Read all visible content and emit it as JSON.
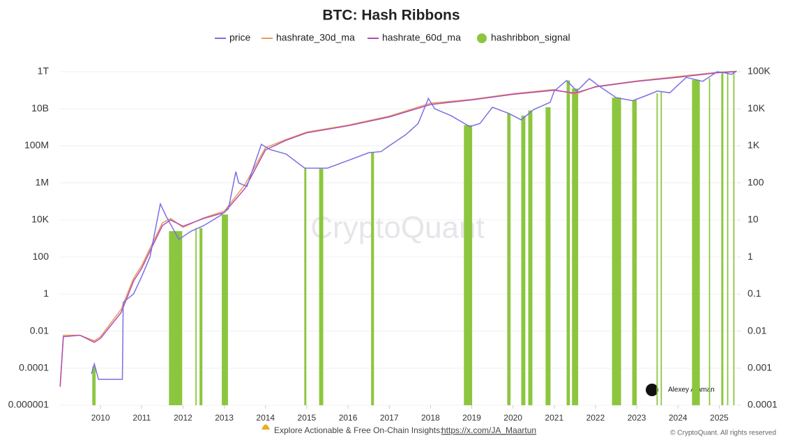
{
  "chart_data": {
    "type": "line",
    "title": "BTC: Hash Ribbons",
    "watermark": "CryptoQuant",
    "annotations": [
      "Alexey Ataman",
      "Explore Actionable & Free On-Chain Insights: ",
      "https://x.com/JA_Maartun",
      "© CryptoQuant. All rights reserved"
    ],
    "log_scale": true,
    "grid": true,
    "legend": "top",
    "xlim": [
      2009.0,
      2025.45
    ],
    "xticks": [
      2010,
      2011,
      2012,
      2013,
      2014,
      2015,
      2016,
      2017,
      2018,
      2019,
      2020,
      2021,
      2022,
      2023,
      2024,
      2025
    ],
    "ylim": [
      1e-06,
      1000000000000.0
    ],
    "yticks": [
      {
        "value": 1000000000000.0,
        "label": "1T"
      },
      {
        "value": 10000000000.0,
        "label": "10B"
      },
      {
        "value": 100000000.0,
        "label": "100M"
      },
      {
        "value": 1000000.0,
        "label": "1M"
      },
      {
        "value": 10000,
        "label": "10K"
      },
      100,
      1,
      0.01,
      0.0001,
      1e-06
    ],
    "y2lim": [
      0.0001,
      100000
    ],
    "y2ticks": [
      {
        "value": 100000,
        "label": "100K"
      },
      {
        "value": 10000,
        "label": "10K"
      },
      {
        "value": 1000,
        "label": "1K"
      },
      100,
      10,
      1,
      0.1,
      0.01,
      0.001,
      0.0001
    ],
    "series": [
      {
        "name": "price",
        "color": "#7a6fe2",
        "axis": "y2",
        "x": [
          2009.78,
          2009.85,
          2009.95,
          2010.53,
          2010.55,
          2010.8,
          2011.0,
          2011.2,
          2011.45,
          2011.6,
          2011.9,
          2012.2,
          2012.5,
          2012.9,
          2013.1,
          2013.28,
          2013.35,
          2013.55,
          2013.9,
          2014.1,
          2014.5,
          2014.95,
          2015.1,
          2015.5,
          2016.0,
          2016.5,
          2016.8,
          2017.0,
          2017.4,
          2017.7,
          2017.95,
          2018.1,
          2018.5,
          2018.95,
          2019.2,
          2019.5,
          2019.9,
          2020.2,
          2020.5,
          2020.9,
          2021.0,
          2021.3,
          2021.55,
          2021.85,
          2022.1,
          2022.5,
          2022.9,
          2023.2,
          2023.5,
          2023.8,
          2024.2,
          2024.6,
          2024.95,
          2025.1,
          2025.3,
          2025.42
        ],
        "values": [
          0.0007,
          0.0013,
          0.0005,
          0.0005,
          0.06,
          0.1,
          0.3,
          1,
          27,
          12,
          3,
          5,
          7,
          13,
          20,
          200,
          100,
          80,
          1100,
          800,
          600,
          250,
          250,
          250,
          400,
          650,
          700,
          1000,
          2000,
          4000,
          19000,
          10000,
          6500,
          3300,
          4000,
          11000,
          7500,
          5000,
          9500,
          15000,
          30000,
          58000,
          30000,
          65000,
          40000,
          20000,
          16500,
          22000,
          30000,
          27000,
          70000,
          55000,
          100000,
          95000,
          85000,
          105000
        ]
      },
      {
        "name": "hashrate_30d_ma",
        "color": "#e89a5a",
        "x": [
          2009.02,
          2009.1,
          2009.5,
          2009.85,
          2010.0,
          2010.5,
          2010.8,
          2011.0,
          2011.5,
          2011.7,
          2012.0,
          2012.5,
          2013.0,
          2013.5,
          2014.0,
          2014.5,
          2015.0,
          2016.0,
          2017.0,
          2018.0,
          2019.0,
          2020.0,
          2021.0,
          2021.5,
          2022.0,
          2023.0,
          2024.0,
          2025.0,
          2025.42
        ],
        "values": [
          1e-05,
          0.006,
          0.006,
          0.003,
          0.005,
          0.15,
          7,
          35,
          7000,
          12000,
          4000,
          13000,
          30000,
          800000,
          80000000,
          220000000,
          550000000,
          1300000000,
          4000000000,
          20000000000,
          32000000000,
          65000000000,
          110000000000,
          60000000000,
          160000000000,
          320000000000,
          550000000000,
          950000000000,
          1050000000000
        ]
      },
      {
        "name": "hashrate_60d_ma",
        "color": "#b04cb5",
        "x": [
          2009.02,
          2009.1,
          2009.5,
          2009.85,
          2010.0,
          2010.5,
          2010.8,
          2011.0,
          2011.5,
          2011.7,
          2012.0,
          2012.5,
          2013.0,
          2013.5,
          2014.0,
          2014.5,
          2015.0,
          2016.0,
          2017.0,
          2018.0,
          2019.0,
          2020.0,
          2021.0,
          2021.5,
          2022.0,
          2023.0,
          2024.0,
          2025.0,
          2025.42
        ],
        "values": [
          1e-05,
          0.005,
          0.006,
          0.0025,
          0.004,
          0.1,
          5,
          25,
          5000,
          10000,
          4600,
          12000,
          25000,
          500000,
          60000000,
          200000000,
          500000000,
          1200000000,
          3600000000,
          17000000000,
          30000000000,
          60000000000,
          100000000000,
          70000000000,
          150000000000,
          300000000000,
          500000000000,
          900000000000,
          1000000000000
        ]
      },
      {
        "name": "hashribbon_signal",
        "color": "#8cc63f",
        "axis": "y2",
        "x": [
          2009.8,
          2011.66,
          2012.3,
          2012.4,
          2012.94,
          2014.94,
          2015.3,
          2016.56,
          2018.81,
          2019.86,
          2020.2,
          2020.37,
          2020.79,
          2021.3,
          2021.43,
          2022.4,
          2022.89,
          2023.48,
          2023.58,
          2024.34,
          2024.75,
          2025.05,
          2025.19,
          2025.34
        ],
        "x_end": [
          2009.88,
          2011.98,
          2012.33,
          2012.47,
          2013.09,
          2014.99,
          2015.4,
          2016.63,
          2019.01,
          2019.94,
          2020.3,
          2020.47,
          2020.91,
          2021.38,
          2021.58,
          2022.62,
          2023.0,
          2023.51,
          2023.61,
          2024.53,
          2024.78,
          2025.1,
          2025.22,
          2025.37
        ],
        "values": [
          0.0011,
          5,
          6,
          6,
          14,
          260,
          240,
          650,
          3600,
          7500,
          6500,
          9000,
          11000,
          58000,
          35000,
          20000,
          17000,
          26000,
          29000,
          60000,
          67000,
          100000,
          95000,
          100000
        ]
      }
    ]
  }
}
